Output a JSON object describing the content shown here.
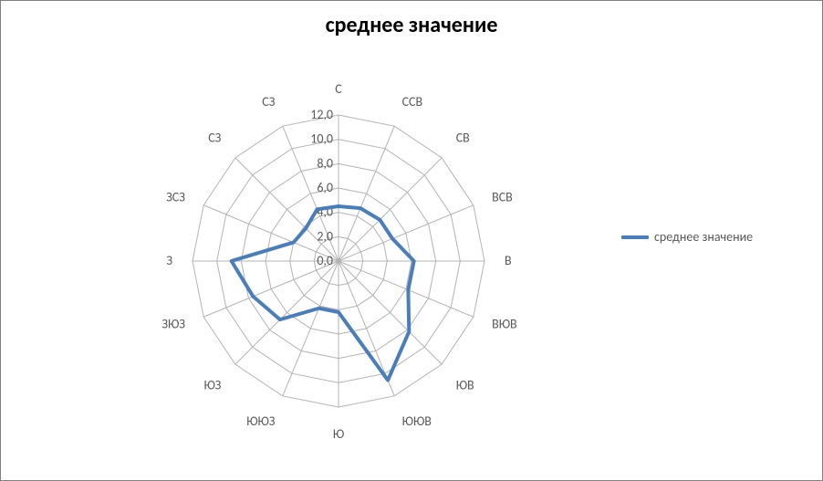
{
  "chart": {
    "type": "radar",
    "title": "среднее значение",
    "title_fontsize": 24,
    "title_color": "#000000",
    "background_color": "#ffffff",
    "border_color": "#808080",
    "series_name": "среднее значение",
    "series_color": "#4a7ebb",
    "series_line_width": 4,
    "grid_color": "#b3b3b3",
    "grid_line_width": 1,
    "axis_label_color": "#595959",
    "axis_label_fontsize": 14,
    "tick_label_color": "#595959",
    "tick_label_fontsize": 14,
    "categories": [
      "С",
      "ССВ",
      "СВ",
      "ВСВ",
      "В",
      "ВЮВ",
      "ЮВ",
      "ЮЮВ",
      "Ю",
      "ЮЮЗ",
      "ЮЗ",
      "ЗЮЗ",
      "З",
      "ЗСЗ",
      "СЗ",
      "СЗ"
    ],
    "values": [
      4.5,
      4.7,
      4.8,
      4.8,
      6.2,
      6.2,
      8.2,
      10.6,
      4.2,
      4.2,
      6.8,
      7.6,
      8.8,
      4.0,
      3.8,
      4.6
    ],
    "r_min": 0,
    "r_max": 12,
    "r_tick_step": 2,
    "r_ticks": [
      "0,0",
      "2,0",
      "4,0",
      "6,0",
      "8,0",
      "10,0",
      "12,0"
    ],
    "legend_label": "среднее значение",
    "legend_fontsize": 14,
    "legend_color": "#595959"
  }
}
